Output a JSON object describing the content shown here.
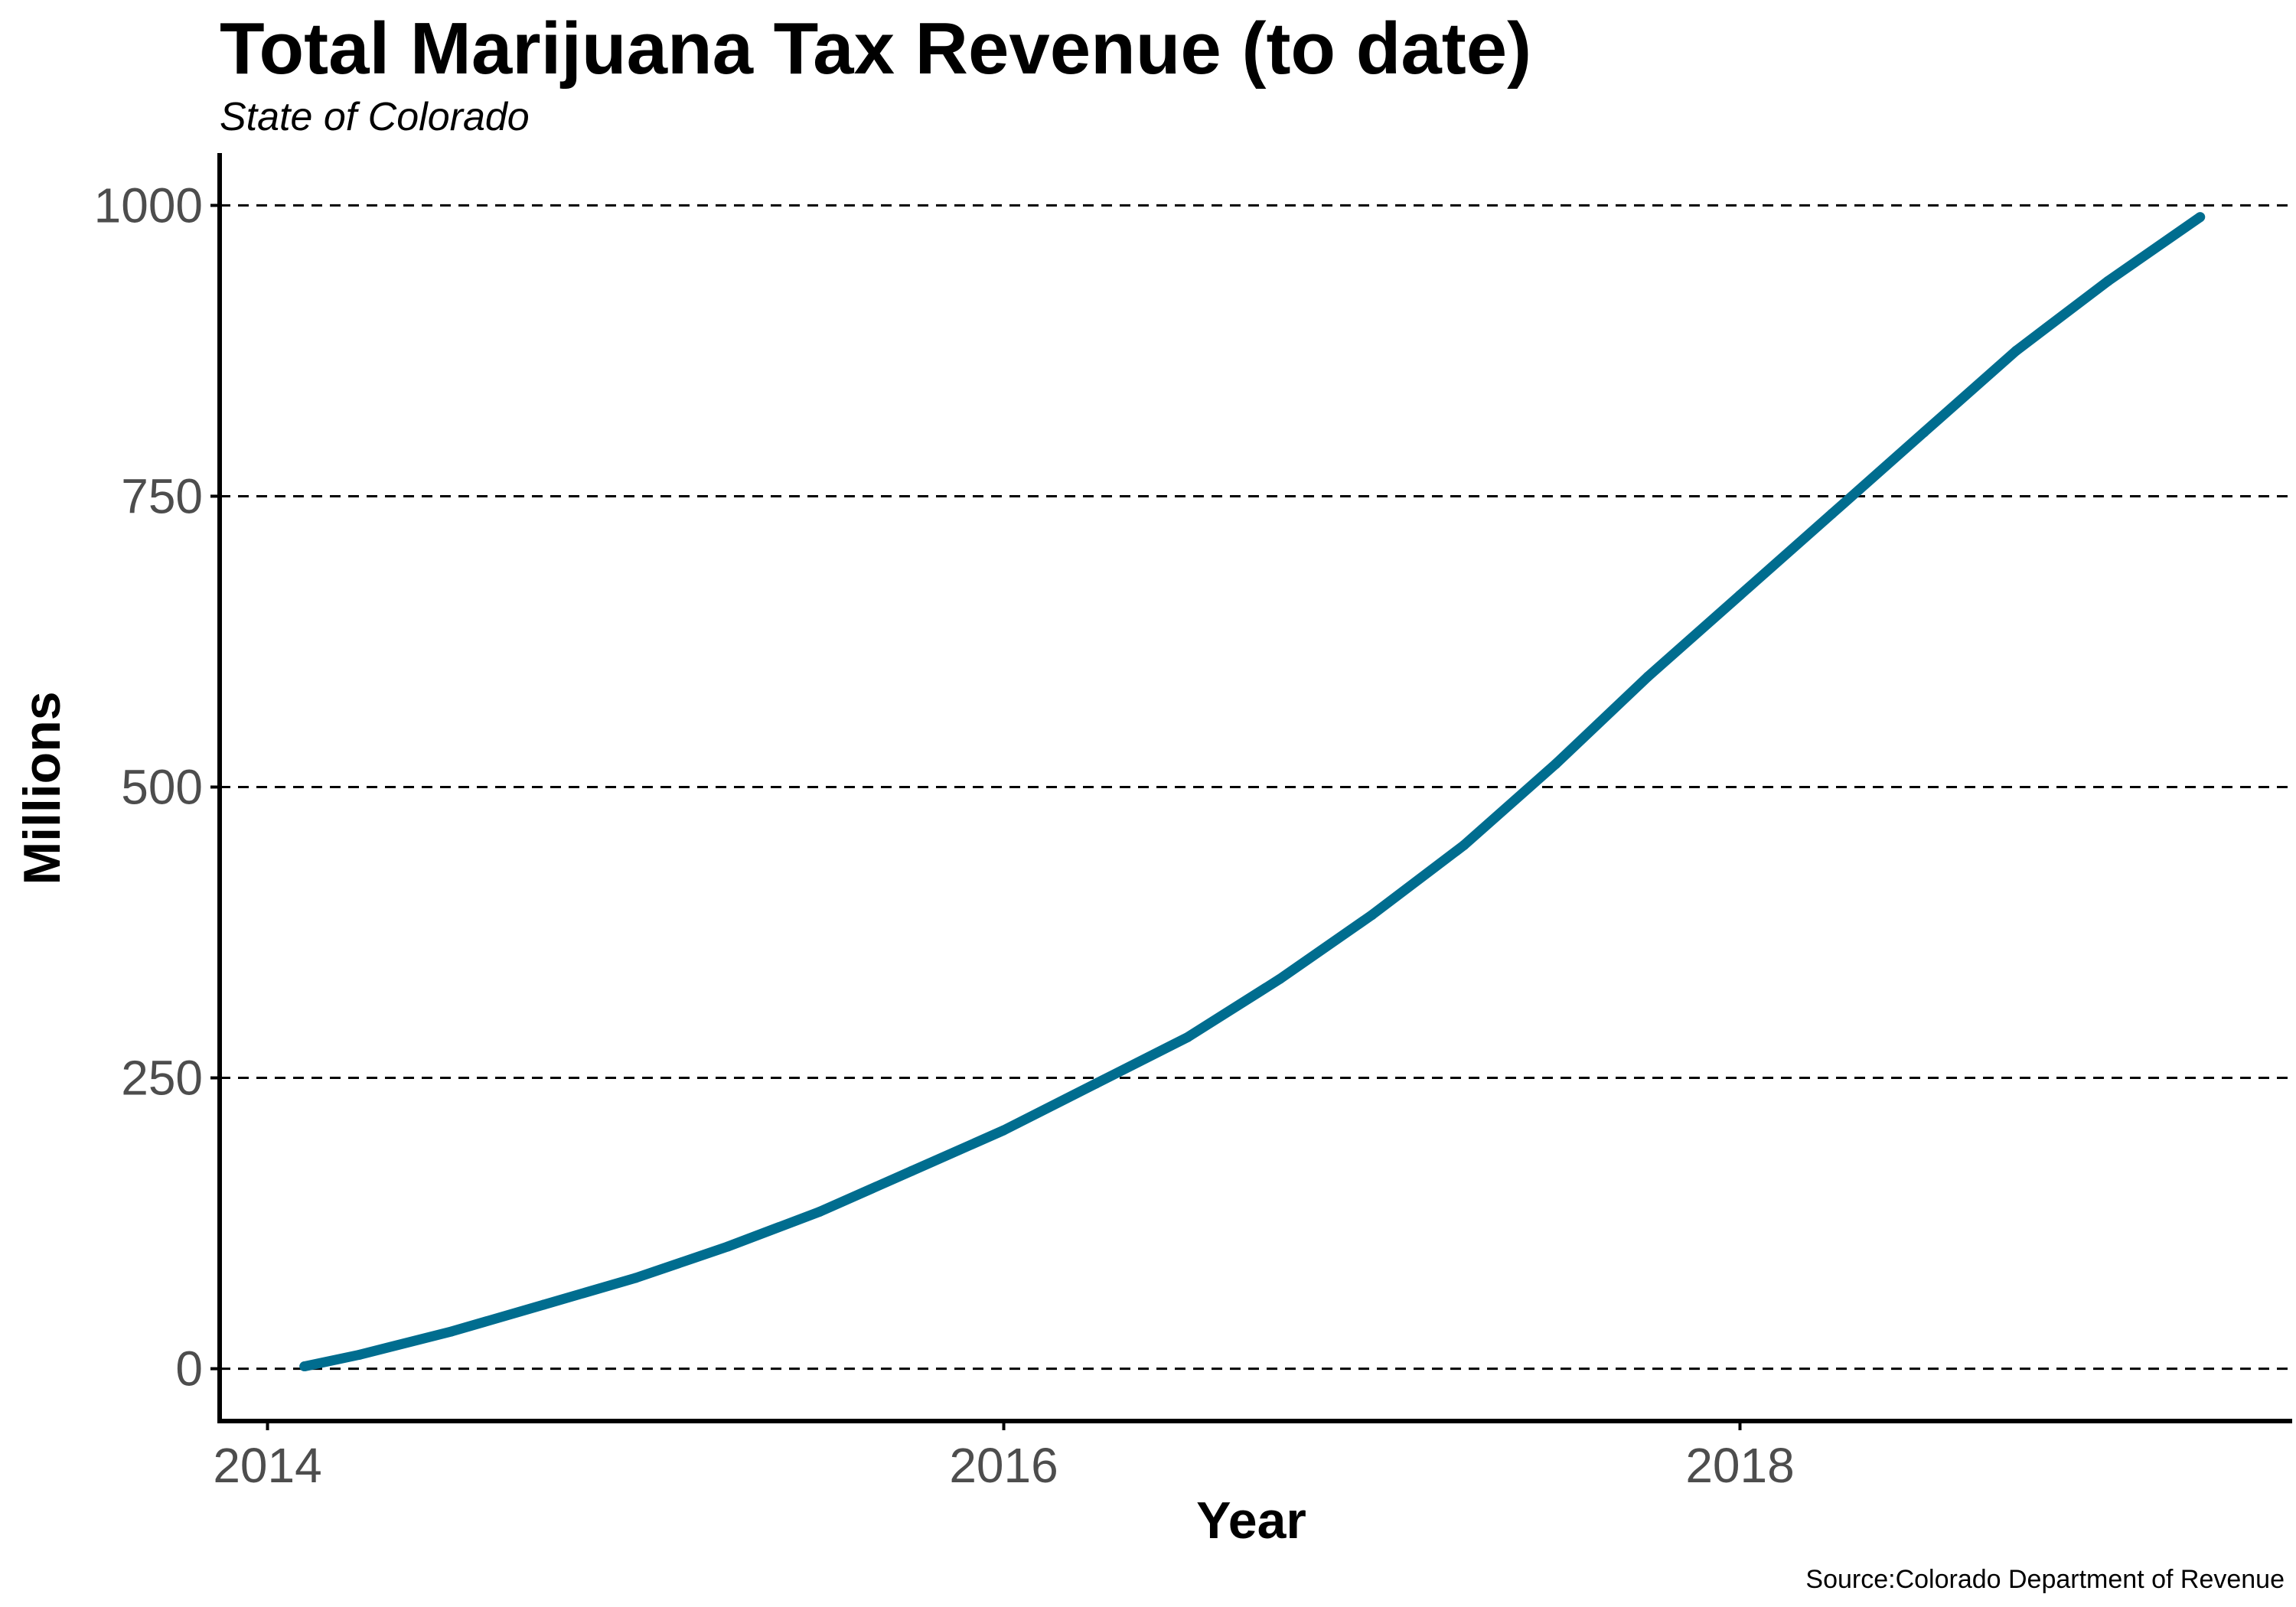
{
  "chart_data": {
    "type": "line",
    "title": "Total Marijuana Tax Revenue (to date)",
    "subtitle": "State of Colorado",
    "xlabel": "Year",
    "ylabel": "Millions",
    "caption": "Source:Colorado Department of Revenue",
    "xlim": [
      2013.87,
      2019.5
    ],
    "ylim": [
      -45,
      1045
    ],
    "x_ticks": [
      2014,
      2016,
      2018
    ],
    "y_ticks": [
      0,
      250,
      500,
      750,
      1000
    ],
    "grid": "horizontal dashed",
    "legend": "none",
    "colors": {
      "series": "#006d8f",
      "grid": "#000000",
      "tick_label": "#4d4d4d"
    },
    "series": [
      {
        "x": [
          2014.1,
          2014.25,
          2014.5,
          2014.75,
          2015.0,
          2015.25,
          2015.5,
          2015.75,
          2016.0,
          2016.25,
          2016.5,
          2016.75,
          2017.0,
          2017.25,
          2017.5,
          2017.75,
          2018.0,
          2018.25,
          2018.5,
          2018.75,
          2019.0,
          2019.25
        ],
        "y": [
          2,
          12,
          32,
          55,
          78,
          105,
          135,
          170,
          205,
          245,
          285,
          335,
          390,
          450,
          520,
          595,
          665,
          735,
          805,
          875,
          935,
          990
        ]
      }
    ]
  }
}
